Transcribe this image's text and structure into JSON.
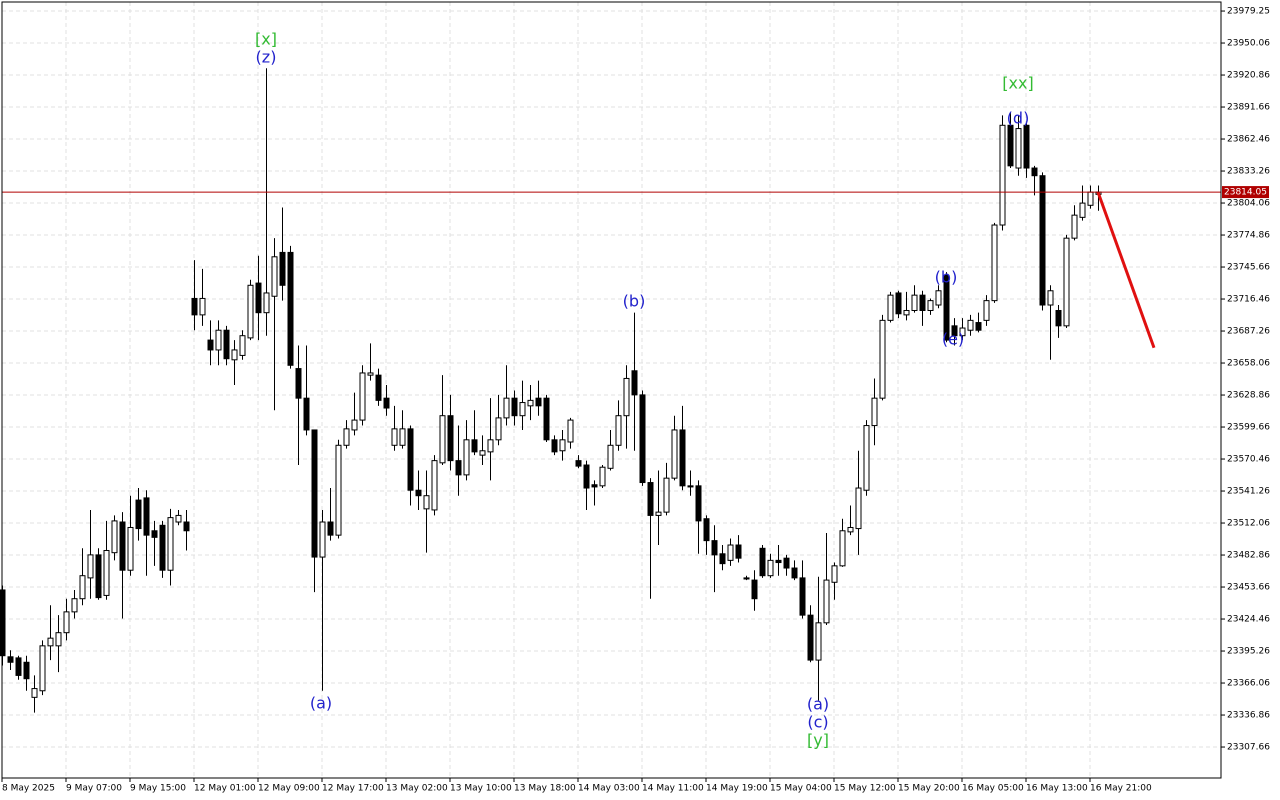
{
  "chart_data": {
    "type": "candlestick",
    "categories": [
      "8 May 2025",
      null,
      null,
      null,
      null,
      null,
      null,
      null,
      "9 May 07:00",
      null,
      null,
      null,
      null,
      null,
      null,
      null,
      "9 May 15:00",
      null,
      null,
      null,
      null,
      null,
      null,
      null,
      "12 May 01:00",
      null,
      null,
      null,
      null,
      null,
      null,
      null,
      "12 May 09:00",
      null,
      null,
      null,
      null,
      null,
      null,
      null,
      "12 May 17:00",
      null,
      null,
      null,
      null,
      null,
      null,
      null,
      "13 May 02:00",
      null,
      null,
      null,
      null,
      null,
      null,
      null,
      "13 May 10:00",
      null,
      null,
      null,
      null,
      null,
      null,
      null,
      "13 May 18:00",
      null,
      null,
      null,
      null,
      null,
      null,
      null,
      "14 May 03:00",
      null,
      null,
      null,
      null,
      null,
      null,
      null,
      "14 May 11:00",
      null,
      null,
      null,
      null,
      null,
      null,
      null,
      "14 May 19:00",
      null,
      null,
      null,
      null,
      null,
      null,
      null,
      "15 May 04:00",
      null,
      null,
      null,
      null,
      null,
      null,
      null,
      "15 May 12:00",
      null,
      null,
      null,
      null,
      null,
      null,
      null,
      "15 May 20:00",
      null,
      null,
      null,
      null,
      null,
      null,
      null,
      "16 May 05:00",
      null,
      null,
      null,
      null,
      null,
      null,
      null,
      "16 May 13:00",
      null,
      null,
      null,
      null,
      null,
      null,
      null,
      "16 May 21:00",
      null
    ],
    "open": [
      23451,
      23390,
      23389,
      23385,
      23353,
      23359,
      23400,
      23400,
      23412,
      23431,
      23443,
      23462,
      23483,
      23446,
      23485,
      23513,
      23469,
      23533,
      23535,
      23505,
      23510,
      23469,
      23513,
      23513,
      23717,
      23702,
      23679,
      23670,
      23688,
      23661,
      23665,
      23681,
      23731,
      23704,
      23719,
      23759,
      23759,
      23653,
      23626,
      23597,
      23481,
      23513,
      23501,
      23583,
      23597,
      23606,
      23647,
      23647,
      23626,
      23583,
      23583,
      23598,
      23542,
      23525,
      23524,
      23567,
      23610,
      23569,
      23556,
      23588,
      23574,
      23577,
      23588,
      23608,
      23626,
      23610,
      23619,
      23626,
      23626,
      23588,
      23578,
      23586,
      23569,
      23565,
      23547,
      23546,
      23562,
      23583,
      23610,
      23651,
      23629,
      23549,
      23519,
      23522,
      23553,
      23597,
      23546,
      23546,
      23516,
      23496,
      23484,
      23478,
      23492,
      23462,
      23460,
      23489,
      23464,
      23478,
      23480,
      23471,
      23462,
      23428,
      23387,
      23421,
      23458,
      23473,
      23504,
      23507,
      23542,
      23601,
      23626,
      23697,
      23722,
      23702,
      23706,
      23720,
      23706,
      23711,
      23738,
      23692,
      23683,
      23688,
      23695,
      23697,
      23715,
      23784,
      23875,
      23836,
      23875,
      23836,
      23829,
      23711,
      23706,
      23692,
      23772,
      23791,
      23802,
      23812
    ],
    "high": [
      23455,
      23396,
      23391,
      23391,
      23373,
      23405,
      23437,
      23428,
      23443,
      23451,
      23489,
      23524,
      23489,
      23514,
      23519,
      23522,
      23537,
      23544,
      23542,
      23514,
      23514,
      23525,
      23524,
      23524,
      23752,
      23744,
      23697,
      23697,
      23692,
      23679,
      23688,
      23734,
      23756,
      23927,
      23772,
      23800,
      23765,
      23674,
      23674,
      23597,
      23524,
      23544,
      23588,
      23606,
      23631,
      23656,
      23676,
      23653,
      23638,
      23619,
      23615,
      23601,
      23560,
      23560,
      23574,
      23647,
      23629,
      23601,
      23606,
      23615,
      23592,
      23626,
      23629,
      23656,
      23633,
      23642,
      23638,
      23642,
      23629,
      23592,
      23597,
      23608,
      23574,
      23569,
      23551,
      23565,
      23597,
      23624,
      23656,
      23704,
      23633,
      23553,
      23560,
      23567,
      23610,
      23619,
      23560,
      23551,
      23519,
      23510,
      23492,
      23498,
      23501,
      23464,
      23469,
      23492,
      23484,
      23492,
      23483,
      23478,
      23478,
      23437,
      23463,
      23503,
      23476,
      23516,
      23528,
      23578,
      23606,
      23644,
      23702,
      23723,
      23724,
      23723,
      23729,
      23724,
      23717,
      23729,
      23741,
      23699,
      23699,
      23702,
      23704,
      23720,
      23786,
      23884,
      23887,
      23884,
      23878,
      23838,
      23832,
      23729,
      23711,
      23775,
      23802,
      23820,
      23820,
      23820
    ],
    "low": [
      23382,
      23378,
      23369,
      23359,
      23339,
      23355,
      23387,
      23376,
      23405,
      23425,
      23437,
      23443,
      23442,
      23442,
      23478,
      23425,
      23464,
      23496,
      23464,
      23473,
      23462,
      23455,
      23510,
      23487,
      23688,
      23692,
      23656,
      23656,
      23656,
      23638,
      23661,
      23679,
      23679,
      23683,
      23615,
      23715,
      23653,
      23565,
      23592,
      23449,
      23359,
      23496,
      23498,
      23580,
      23592,
      23601,
      23642,
      23619,
      23610,
      23578,
      23580,
      23528,
      23524,
      23485,
      23519,
      23565,
      23560,
      23537,
      23551,
      23574,
      23565,
      23551,
      23583,
      23601,
      23601,
      23597,
      23606,
      23610,
      23586,
      23574,
      23569,
      23580,
      23562,
      23524,
      23528,
      23544,
      23560,
      23578,
      23580,
      23578,
      23546,
      23443,
      23492,
      23519,
      23551,
      23542,
      23537,
      23484,
      23483,
      23449,
      23469,
      23473,
      23476,
      23460,
      23432,
      23462,
      23462,
      23464,
      23464,
      23460,
      23425,
      23385,
      23350,
      23419,
      23442,
      23472,
      23501,
      23483,
      23537,
      23583,
      23624,
      23695,
      23699,
      23697,
      23704,
      23692,
      23702,
      23708,
      23677,
      23674,
      23679,
      23683,
      23686,
      23692,
      23713,
      23779,
      23836,
      23829,
      23827,
      23811,
      23706,
      23661,
      23681,
      23690,
      23770,
      23788,
      23799,
      23797
    ],
    "close": [
      23391,
      23385,
      23373,
      23370,
      23361,
      23400,
      23407,
      23412,
      23431,
      23443,
      23464,
      23483,
      23444,
      23487,
      23514,
      23469,
      23508,
      23507,
      23501,
      23499,
      23469,
      23517,
      23519,
      23505,
      23702,
      23717,
      23670,
      23688,
      23662,
      23670,
      23683,
      23729,
      23704,
      23722,
      23755,
      23729,
      23656,
      23626,
      23597,
      23481,
      23513,
      23501,
      23583,
      23598,
      23606,
      23649,
      23649,
      23624,
      23617,
      23598,
      23598,
      23542,
      23537,
      23537,
      23569,
      23610,
      23569,
      23556,
      23588,
      23577,
      23578,
      23588,
      23608,
      23626,
      23610,
      23622,
      23624,
      23619,
      23588,
      23577,
      23588,
      23606,
      23564,
      23544,
      23545,
      23563,
      23583,
      23610,
      23644,
      23629,
      23549,
      23519,
      23522,
      23553,
      23597,
      23546,
      23545,
      23514,
      23496,
      23483,
      23475,
      23492,
      23480,
      23461,
      23443,
      23464,
      23478,
      23476,
      23471,
      23462,
      23428,
      23387,
      23421,
      23460,
      23473,
      23505,
      23508,
      23544,
      23601,
      23626,
      23697,
      23720,
      23703,
      23706,
      23720,
      23706,
      23715,
      23724,
      23679,
      23683,
      23690,
      23697,
      23688,
      23715,
      23784,
      23875,
      23838,
      23872,
      23836,
      23829,
      23711,
      23724,
      23692,
      23772,
      23793,
      23804,
      23814,
      23814.05
    ],
    "ylim": [
      23279.4,
      23987.5
    ],
    "yticks": [
      23979.25,
      23950.06,
      23920.86,
      23891.66,
      23862.46,
      23833.26,
      23804.06,
      23774.86,
      23745.66,
      23716.46,
      23687.26,
      23658.06,
      23628.86,
      23599.66,
      23570.46,
      23541.26,
      23512.06,
      23482.86,
      23453.66,
      23424.46,
      23395.26,
      23366.06,
      23336.86,
      23307.66
    ],
    "grid": true,
    "bull_color": "#ffffff",
    "bear_color": "#000000",
    "last_price": 23814.05,
    "last_price_color": "#b00000",
    "annotations": [
      {
        "text": "[x]",
        "color": "#33bb33"
      },
      {
        "text": "(z)",
        "color": "#2222cc"
      },
      {
        "text": "(a)",
        "color": "#2222cc"
      },
      {
        "text": "(b)",
        "color": "#2222cc"
      },
      {
        "text": "(a)",
        "color": "#2222cc"
      },
      {
        "text": "(c)",
        "color": "#2222cc"
      },
      {
        "text": "[y]",
        "color": "#33bb33"
      },
      {
        "text": "(b)",
        "color": "#2222cc"
      },
      {
        "text": "(e)",
        "color": "#2222cc"
      },
      {
        "text": "[xx]",
        "color": "#33bb33"
      },
      {
        "text": "(d)",
        "color": "#2222cc"
      }
    ],
    "projection": {
      "color": "#e01010",
      "from": 23814.05,
      "to": 23672
    }
  }
}
